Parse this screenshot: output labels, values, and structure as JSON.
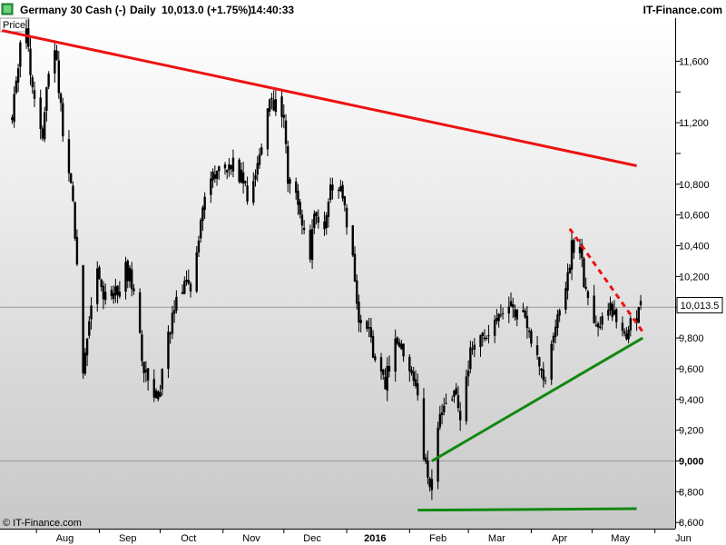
{
  "header": {
    "instrument": "Germany 30 Cash (-)",
    "period": "Daily",
    "quote": "10,013.0 (+1.75%)",
    "time": "14:40:33",
    "brand": "IT-Finance.com"
  },
  "panel_label": "Price",
  "copyright": "© IT-Finance.com",
  "price_tag": "10,013.5",
  "colors": {
    "background_top": "#ffffff",
    "background_bottom": "#c8c8c8",
    "candles": "#000000",
    "resistance": "#ee1111",
    "support": "#118811",
    "price_tag_bg": "#ffffff"
  },
  "chart_data": {
    "type": "candlestick",
    "title": "Germany 30 Cash (-)",
    "timeframe": "Daily",
    "x_axis": {
      "ticks": [
        "Aug",
        "Sep",
        "Oct",
        "Nov",
        "Dec",
        "2016",
        "Feb",
        "Mar",
        "Apr",
        "May",
        "Jun"
      ],
      "emphasized": [
        "2016"
      ]
    },
    "y_axis": {
      "side": "right",
      "range": [
        8560,
        11880
      ],
      "ticks": [
        "8,600",
        "8,800",
        "9,000",
        "9,200",
        "9,400",
        "9,600",
        "9,800",
        "10,000",
        "10,200",
        "10,400",
        "10,600",
        "10,800",
        "11,000",
        "11,200",
        "11,400",
        "11,600"
      ],
      "tick_values": [
        8600,
        8800,
        9000,
        9200,
        9400,
        9600,
        9800,
        10000,
        10200,
        10400,
        10600,
        10800,
        11000,
        11200,
        11400,
        11600
      ],
      "emphasized": [
        9000,
        10000
      ],
      "labeled": [
        8600,
        8800,
        9000,
        9200,
        9400,
        9600,
        9800,
        10200,
        10400,
        10600,
        10800,
        11200,
        11600
      ]
    },
    "horizontal_lines": [
      9000,
      10000
    ],
    "last_price": 10013.5,
    "price_path": [
      [
        "2015-07-20",
        11250
      ],
      [
        "2015-07-24",
        11700
      ],
      [
        "2015-07-27",
        11820
      ],
      [
        "2015-07-30",
        11400
      ],
      [
        "2015-08-04",
        11150
      ],
      [
        "2015-08-07",
        11550
      ],
      [
        "2015-08-10",
        11700
      ],
      [
        "2015-08-14",
        11150
      ],
      [
        "2015-08-19",
        10700
      ],
      [
        "2015-08-24",
        9600
      ],
      [
        "2015-08-26",
        9800
      ],
      [
        "2015-08-31",
        10300
      ],
      [
        "2015-09-03",
        10100
      ],
      [
        "2015-09-08",
        10050
      ],
      [
        "2015-09-14",
        10250
      ],
      [
        "2015-09-18",
        10150
      ],
      [
        "2015-09-22",
        9650
      ],
      [
        "2015-09-25",
        9550
      ],
      [
        "2015-09-29",
        9400
      ],
      [
        "2015-10-02",
        9550
      ],
      [
        "2015-10-07",
        9950
      ],
      [
        "2015-10-12",
        10150
      ],
      [
        "2015-10-16",
        10150
      ],
      [
        "2015-10-20",
        10450
      ],
      [
        "2015-10-23",
        10750
      ],
      [
        "2015-10-27",
        10850
      ],
      [
        "2015-10-30",
        10900
      ],
      [
        "2015-11-03",
        10900
      ],
      [
        "2015-11-06",
        10950
      ],
      [
        "2015-11-10",
        10850
      ],
      [
        "2015-11-13",
        10700
      ],
      [
        "2015-11-17",
        10900
      ],
      [
        "2015-11-20",
        11100
      ],
      [
        "2015-11-24",
        11300
      ],
      [
        "2015-11-27",
        11350
      ],
      [
        "2015-12-01",
        11250
      ],
      [
        "2015-12-03",
        10800
      ],
      [
        "2015-12-07",
        10800
      ],
      [
        "2015-12-10",
        10550
      ],
      [
        "2015-12-14",
        10350
      ],
      [
        "2015-12-16",
        10600
      ],
      [
        "2015-12-21",
        10500
      ],
      [
        "2015-12-24",
        10750
      ],
      [
        "2015-12-29",
        10800
      ],
      [
        "2016-01-04",
        10350
      ],
      [
        "2016-01-07",
        9950
      ],
      [
        "2016-01-12",
        9900
      ],
      [
        "2016-01-15",
        9600
      ],
      [
        "2016-01-20",
        9500
      ],
      [
        "2016-01-25",
        9800
      ],
      [
        "2016-01-28",
        9750
      ],
      [
        "2016-02-02",
        9600
      ],
      [
        "2016-02-05",
        9400
      ],
      [
        "2016-02-09",
        8950
      ],
      [
        "2016-02-11",
        8800
      ],
      [
        "2016-02-15",
        9200
      ],
      [
        "2016-02-18",
        9400
      ],
      [
        "2016-02-22",
        9450
      ],
      [
        "2016-02-26",
        9300
      ],
      [
        "2016-03-02",
        9700
      ],
      [
        "2016-03-08",
        9800
      ],
      [
        "2016-03-14",
        9950
      ],
      [
        "2016-03-18",
        9950
      ],
      [
        "2016-03-23",
        10000
      ],
      [
        "2016-03-29",
        9900
      ],
      [
        "2016-04-01",
        9750
      ],
      [
        "2016-04-05",
        9600
      ],
      [
        "2016-04-08",
        9550
      ],
      [
        "2016-04-13",
        9900
      ],
      [
        "2016-04-18",
        10100
      ],
      [
        "2016-04-21",
        10400
      ],
      [
        "2016-04-25",
        10350
      ],
      [
        "2016-04-29",
        10000
      ],
      [
        "2016-05-03",
        9900
      ],
      [
        "2016-05-06",
        9900
      ],
      [
        "2016-05-10",
        10000
      ],
      [
        "2016-05-13",
        9950
      ],
      [
        "2016-05-18",
        9850
      ],
      [
        "2016-05-20",
        9900
      ],
      [
        "2016-05-24",
        9950
      ],
      [
        "2016-05-25",
        10013
      ]
    ],
    "trendlines": [
      {
        "name": "long-term resistance",
        "style": "solid",
        "color": "red",
        "from": [
          "2015-07-15",
          11800
        ],
        "to": [
          "2016-05-23",
          10920
        ]
      },
      {
        "name": "short-term resistance",
        "style": "dashed",
        "color": "red",
        "from": [
          "2016-04-20",
          10510
        ],
        "to": [
          "2016-05-26",
          9840
        ]
      },
      {
        "name": "rising support",
        "style": "solid",
        "color": "green",
        "from": [
          "2016-02-12",
          9000
        ],
        "to": [
          "2016-05-26",
          9800
        ]
      },
      {
        "name": "horizontal support",
        "style": "solid",
        "color": "green",
        "from": [
          "2016-02-05",
          8680
        ],
        "to": [
          "2016-05-23",
          8690
        ]
      }
    ]
  }
}
